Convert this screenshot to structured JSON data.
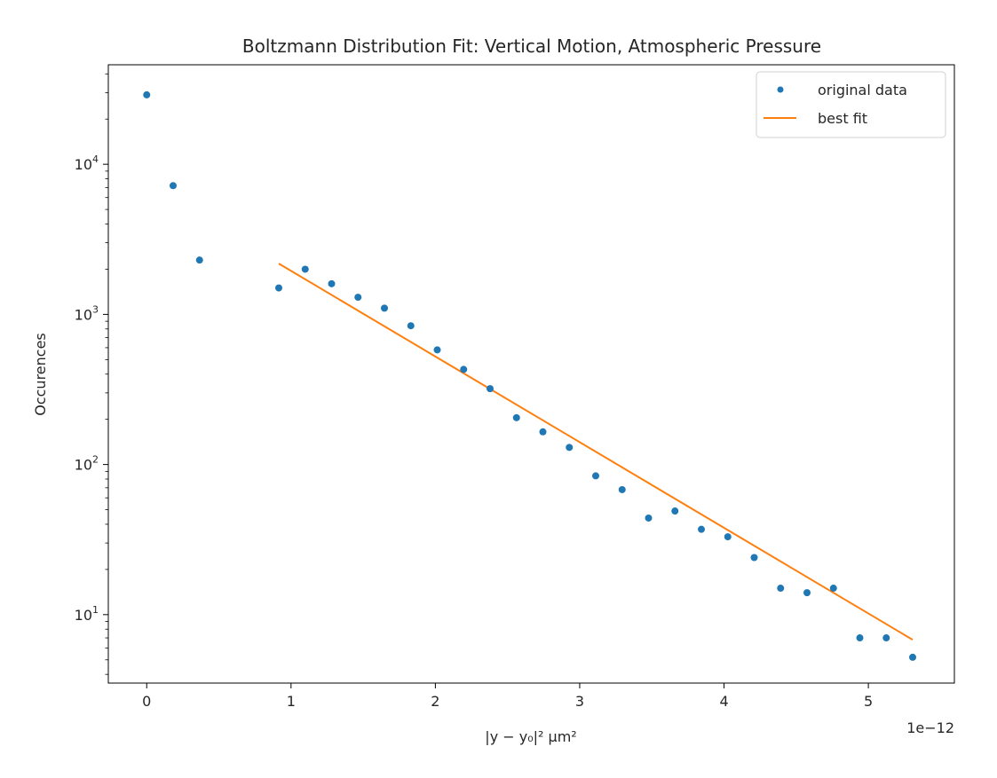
{
  "chart_data": {
    "type": "scatter",
    "title": "Boltzmann Distribution Fit: Vertical Motion, Atmospheric Pressure",
    "xlabel": "|y − y₀|² µm²",
    "ylabel": "Occurences",
    "x_offset_label": "1e−12",
    "x_scale": "linear",
    "y_scale": "log",
    "xlim": [
      -2.66e-13,
      5.596e-12
    ],
    "ylim": [
      3.5,
      46000
    ],
    "x_ticks": [
      0,
      1e-12,
      2e-12,
      3e-12,
      4e-12,
      5e-12
    ],
    "x_tick_labels": [
      "0",
      "1",
      "2",
      "3",
      "4",
      "5"
    ],
    "y_ticks": [
      10,
      100,
      1000,
      10000
    ],
    "y_tick_labels": [
      "10",
      "10",
      "10",
      "10"
    ],
    "y_tick_exponents": [
      "1",
      "2",
      "3",
      "4"
    ],
    "grid": false,
    "legend_position": "top-right",
    "series": [
      {
        "name": "original data",
        "kind": "scatter",
        "color": "#1f77b4",
        "x": [
          0,
          1.83e-13,
          3.66e-13,
          9.15e-13,
          1.098e-12,
          1.281e-12,
          1.464e-12,
          1.647e-12,
          1.83e-12,
          2.013e-12,
          2.196e-12,
          2.379e-12,
          2.562e-12,
          2.745e-12,
          2.928e-12,
          3.111e-12,
          3.294e-12,
          3.477e-12,
          3.66e-12,
          3.843e-12,
          4.026e-12,
          4.209e-12,
          4.392e-12,
          4.575e-12,
          4.758e-12,
          4.941e-12,
          5.124e-12,
          5.307e-12
        ],
        "y": [
          29000,
          7200,
          2300,
          1500,
          2000,
          1600,
          1300,
          1100,
          840,
          580,
          430,
          320,
          205,
          165,
          130,
          84,
          68,
          44,
          49,
          37,
          33,
          24,
          15,
          14,
          15,
          7,
          7,
          5.2
        ]
      },
      {
        "name": "best fit",
        "kind": "line",
        "color": "#ff7f0e",
        "x": [
          9.15e-13,
          5.307e-12
        ],
        "y": [
          2180,
          6.8
        ]
      }
    ]
  }
}
